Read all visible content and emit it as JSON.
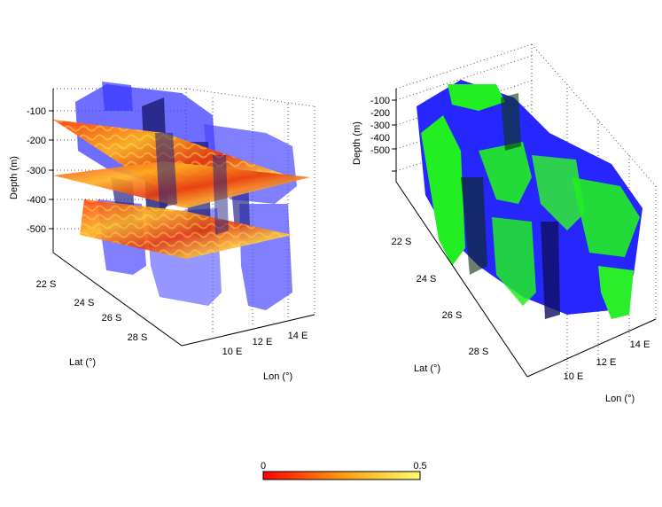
{
  "colors": {
    "isosurface_blue": "#3b3bff",
    "isosurface_green": "#22ee22",
    "slice_red": "#e82010",
    "slice_yellow": "#ffe84a",
    "colorbar_low": "#ff0000",
    "colorbar_high": "#ffff60"
  },
  "chart_data": [
    {
      "type": "3d-volume",
      "panel": "left",
      "xlabel": "Lon (°)",
      "ylabel": "Lat (°)",
      "zlabel": "Depth (m)",
      "x_ticks": [
        "10 E",
        "12 E",
        "14 E"
      ],
      "y_ticks": [
        "22 S",
        "24 S",
        "26 S",
        "28 S"
      ],
      "z_ticks": [
        "-100",
        "-200",
        "-300",
        "-400",
        "-500"
      ],
      "slices_depth_m": [
        -150,
        -300
      ],
      "grid": true
    },
    {
      "type": "3d-volume",
      "panel": "right",
      "xlabel": "Lon (°)",
      "ylabel": "Lat (°)",
      "zlabel": "Depth (m)",
      "x_ticks": [
        "10 E",
        "12 E",
        "14 E"
      ],
      "y_ticks": [
        "22 S",
        "24 S",
        "26 S",
        "28 S"
      ],
      "z_ticks": [
        "-100",
        "-200",
        "-300",
        "-400",
        "-500"
      ],
      "grid": true
    }
  ],
  "colorbar": {
    "min_label": "0",
    "max_label": "0.5",
    "range": [
      0,
      0.5
    ]
  }
}
